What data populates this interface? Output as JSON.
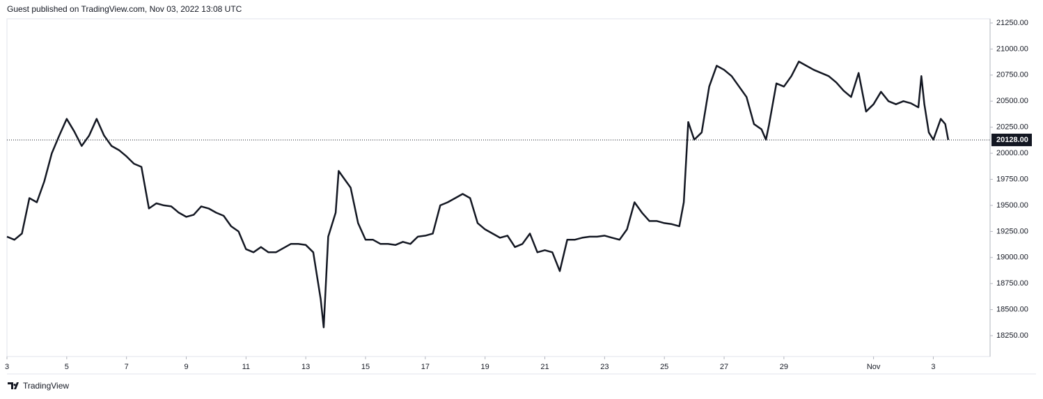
{
  "header": "Guest published on TradingView.com, Nov 03, 2022 13:08 UTC",
  "footer": "TradingView",
  "chart_data": {
    "type": "line",
    "color": "#131722",
    "x": [
      3.0,
      3.25,
      3.5,
      3.75,
      4.0,
      4.25,
      4.5,
      4.75,
      5.0,
      5.25,
      5.5,
      5.75,
      6.0,
      6.25,
      6.5,
      6.75,
      7.0,
      7.25,
      7.5,
      7.75,
      8.0,
      8.25,
      8.5,
      8.75,
      9.0,
      9.25,
      9.5,
      9.75,
      10.0,
      10.25,
      10.5,
      10.75,
      11.0,
      11.25,
      11.5,
      11.75,
      12.0,
      12.25,
      12.5,
      12.75,
      13.0,
      13.25,
      13.5,
      13.6,
      13.75,
      14.0,
      14.1,
      14.25,
      14.5,
      14.75,
      15.0,
      15.25,
      15.5,
      15.75,
      16.0,
      16.25,
      16.5,
      16.75,
      17.0,
      17.25,
      17.5,
      17.75,
      18.0,
      18.25,
      18.5,
      18.75,
      19.0,
      19.25,
      19.5,
      19.75,
      20.0,
      20.25,
      20.5,
      20.75,
      21.0,
      21.25,
      21.5,
      21.75,
      22.0,
      22.25,
      22.5,
      22.75,
      23.0,
      23.25,
      23.5,
      23.75,
      24.0,
      24.25,
      24.5,
      24.75,
      25.0,
      25.25,
      25.5,
      25.65,
      25.8,
      26.0,
      26.25,
      26.5,
      26.75,
      27.0,
      27.25,
      27.5,
      27.75,
      28.0,
      28.25,
      28.4,
      28.5,
      28.75,
      29.0,
      29.25,
      29.5,
      29.75,
      30.0,
      30.25,
      30.5,
      30.75,
      31.0,
      31.25,
      31.5,
      31.75,
      32.0,
      32.25,
      32.5,
      32.75,
      33.0,
      33.25,
      33.5,
      33.6,
      33.7,
      33.85,
      34.0,
      34.25,
      34.4,
      34.5
    ],
    "values": [
      19200,
      19170,
      19230,
      19570,
      19530,
      19730,
      20000,
      20170,
      20330,
      20210,
      20070,
      20170,
      20330,
      20170,
      20070,
      20030,
      19970,
      19900,
      19870,
      19470,
      19520,
      19500,
      19490,
      19430,
      19390,
      19410,
      19490,
      19470,
      19430,
      19400,
      19300,
      19250,
      19080,
      19050,
      19100,
      19050,
      19050,
      19090,
      19130,
      19130,
      19120,
      19050,
      18600,
      18330,
      19200,
      19430,
      19830,
      19770,
      19670,
      19330,
      19170,
      19170,
      19130,
      19130,
      19120,
      19150,
      19130,
      19200,
      19210,
      19230,
      19500,
      19530,
      19570,
      19610,
      19570,
      19330,
      19270,
      19230,
      19190,
      19210,
      19100,
      19130,
      19230,
      19050,
      19070,
      19050,
      18870,
      19170,
      19170,
      19190,
      19200,
      19200,
      19210,
      19190,
      19170,
      19270,
      19530,
      19430,
      19350,
      19350,
      19330,
      19320,
      19300,
      19530,
      20300,
      20130,
      20200,
      20640,
      20840,
      20800,
      20740,
      20640,
      20540,
      20280,
      20230,
      20130,
      20270,
      20670,
      20640,
      20740,
      20880,
      20840,
      20800,
      20770,
      20740,
      20680,
      20600,
      20540,
      20770,
      20400,
      20470,
      20590,
      20500,
      20470,
      20500,
      20480,
      20440,
      20740,
      20470,
      20200,
      20130,
      20330,
      20280,
      20128
    ],
    "xlim": [
      3,
      35.9
    ],
    "ylim": [
      18050,
      21290
    ],
    "xticks": [
      3,
      5,
      7,
      9,
      11,
      13,
      15,
      17,
      19,
      21,
      23,
      25,
      27,
      29,
      {
        "value": 32,
        "label": "Nov"
      },
      {
        "value": 34,
        "label": "3"
      }
    ],
    "yticks": [
      {
        "value": 18250,
        "label": "18250.00"
      },
      {
        "value": 18500,
        "label": "18500.00"
      },
      {
        "value": 18750,
        "label": "18750.00"
      },
      {
        "value": 19000,
        "label": "19000.00"
      },
      {
        "value": 19250,
        "label": "19250.00"
      },
      {
        "value": 19500,
        "label": "19500.00"
      },
      {
        "value": 19750,
        "label": "19750.00"
      },
      {
        "value": 20000,
        "label": "20000.00"
      },
      {
        "value": 20250,
        "label": "20250.00"
      },
      {
        "value": 20500,
        "label": "20500.00"
      },
      {
        "value": 20750,
        "label": "20750.00"
      },
      {
        "value": 21000,
        "label": "21000.00"
      },
      {
        "value": 21250,
        "label": "21250.00"
      }
    ],
    "price_line": {
      "value": 20128,
      "label": "20128.00"
    }
  }
}
